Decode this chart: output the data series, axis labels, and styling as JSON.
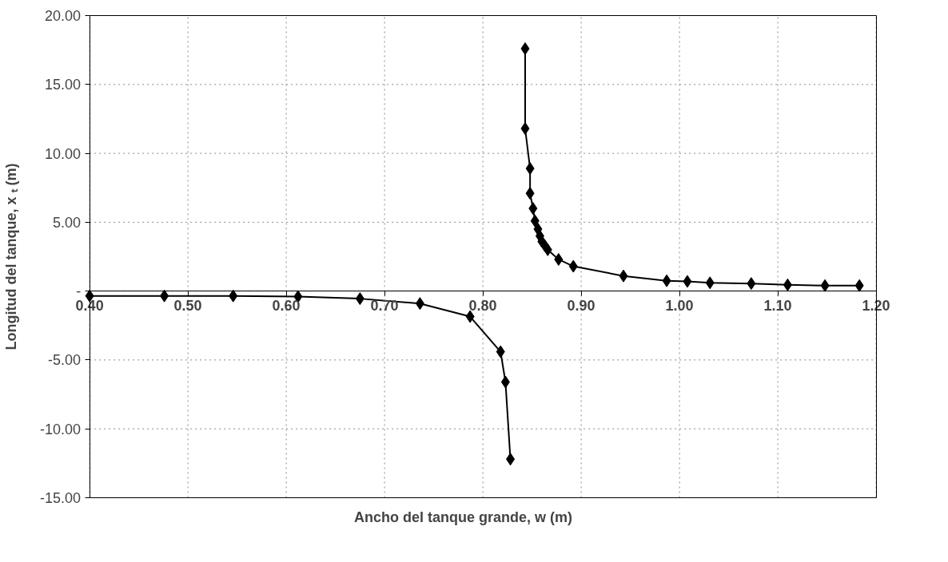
{
  "chart_data": {
    "type": "line",
    "xlabel": "Ancho del tanque grande, w (m)",
    "ylabel": "Longitud del tanque, x ₜ (m)",
    "series": [
      {
        "color": "#000000",
        "x": [
          0.843,
          0.843,
          0.848,
          0.848,
          0.851,
          0.853,
          0.856,
          0.858,
          0.86,
          0.863,
          0.866,
          0.877,
          0.892,
          0.943,
          0.987,
          1.008,
          1.031,
          1.073,
          1.11,
          1.148,
          1.183
        ],
        "values": [
          17.6,
          11.8,
          8.9,
          7.1,
          6.0,
          5.1,
          4.5,
          4.0,
          3.6,
          3.3,
          3.0,
          2.3,
          1.8,
          1.1,
          0.75,
          0.7,
          0.6,
          0.55,
          0.45,
          0.4,
          0.4
        ]
      },
      {
        "color": "#000000",
        "x": [
          0.4,
          0.476,
          0.546,
          0.612,
          0.675,
          0.736,
          0.787,
          0.818,
          0.823,
          0.828
        ],
        "values": [
          -0.35,
          -0.35,
          -0.35,
          -0.4,
          -0.55,
          -0.9,
          -1.85,
          -4.4,
          -6.6,
          -12.2
        ]
      }
    ],
    "xlim": [
      0.4,
      1.2
    ],
    "ylim": [
      -15,
      20
    ],
    "xticks": [
      {
        "value": 0.4,
        "label": "0.40"
      },
      {
        "value": 0.5,
        "label": "0.50"
      },
      {
        "value": 0.6,
        "label": "0.60"
      },
      {
        "value": 0.7,
        "label": "0.70"
      },
      {
        "value": 0.8,
        "label": "0.80"
      },
      {
        "value": 0.9,
        "label": "0.90"
      },
      {
        "value": 1.0,
        "label": "1.00"
      },
      {
        "value": 1.1,
        "label": "1.10"
      },
      {
        "value": 1.2,
        "label": "1.20"
      }
    ],
    "yticks": [
      {
        "value": -15,
        "label": "-15.00"
      },
      {
        "value": -10,
        "label": "-10.00"
      },
      {
        "value": -5,
        "label": "-5.00"
      },
      {
        "value": 0,
        "label": "-"
      },
      {
        "value": 5,
        "label": "5.00"
      },
      {
        "value": 10,
        "label": "10.00"
      },
      {
        "value": 15,
        "label": "15.00"
      },
      {
        "value": 20,
        "label": "20.00"
      }
    ],
    "grid": true,
    "marker": "diamond",
    "line_style": "solid"
  }
}
